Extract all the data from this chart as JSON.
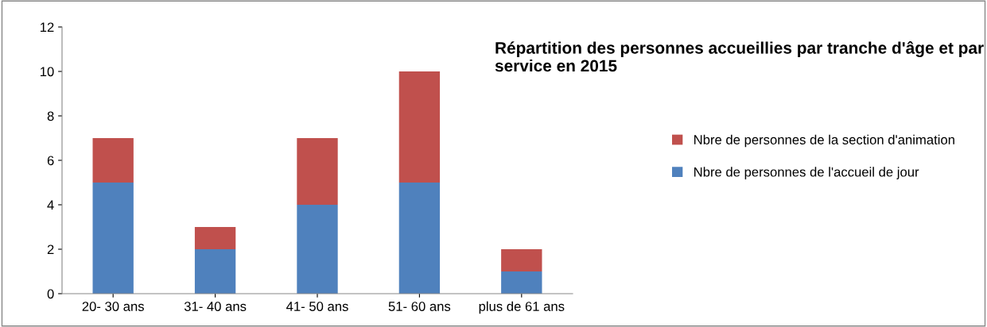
{
  "chart_data": {
    "type": "bar",
    "stacked": true,
    "title": "Répartition des personnes accueillies par tranche d'âge et par service en 2015",
    "categories": [
      "20- 30 ans",
      "31- 40 ans",
      "41- 50 ans",
      "51- 60 ans",
      "plus de 61 ans"
    ],
    "series": [
      {
        "name": "Nbre de personnes de l'accueil de jour",
        "color": "#4f81bd",
        "values": [
          5,
          2,
          4,
          5,
          1
        ]
      },
      {
        "name": "Nbre de personnes de la section d'animation",
        "color": "#c0504d",
        "values": [
          2,
          1,
          3,
          5,
          1
        ]
      }
    ],
    "ylim": [
      0,
      12
    ],
    "yticks": [
      0,
      2,
      4,
      6,
      8,
      10,
      12
    ],
    "grid": false,
    "legend": "right"
  }
}
